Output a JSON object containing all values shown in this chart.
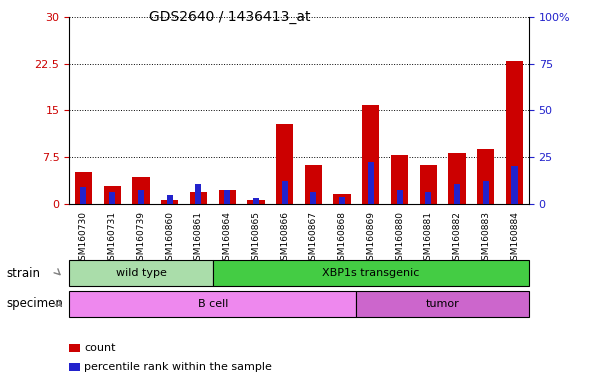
{
  "title": "GDS2640 / 1436413_at",
  "samples": [
    "GSM160730",
    "GSM160731",
    "GSM160739",
    "GSM160860",
    "GSM160861",
    "GSM160864",
    "GSM160865",
    "GSM160866",
    "GSM160867",
    "GSM160868",
    "GSM160869",
    "GSM160880",
    "GSM160881",
    "GSM160882",
    "GSM160883",
    "GSM160884"
  ],
  "count_values": [
    5.0,
    2.8,
    4.2,
    0.6,
    1.8,
    2.2,
    0.5,
    12.8,
    6.2,
    1.6,
    15.8,
    7.8,
    6.2,
    8.2,
    8.8,
    23.0
  ],
  "percentile_values": [
    9.0,
    6.0,
    7.5,
    4.5,
    10.5,
    7.5,
    3.0,
    12.0,
    6.0,
    3.6,
    22.5,
    7.5,
    6.0,
    10.5,
    12.0,
    20.0
  ],
  "ylim_left": [
    0,
    30
  ],
  "ylim_right": [
    0,
    100
  ],
  "yticks_left": [
    0,
    7.5,
    15,
    22.5,
    30
  ],
  "yticks_right": [
    0,
    25,
    50,
    75,
    100
  ],
  "ytick_labels_left": [
    "0",
    "7.5",
    "15",
    "22.5",
    "30"
  ],
  "ytick_labels_right": [
    "0",
    "25",
    "50",
    "75",
    "100%"
  ],
  "count_color": "#cc0000",
  "percentile_color": "#2222cc",
  "strain_groups": [
    {
      "label": "wild type",
      "start": 0,
      "end": 4,
      "color": "#aaddaa"
    },
    {
      "label": "XBP1s transgenic",
      "start": 5,
      "end": 15,
      "color": "#44cc44"
    }
  ],
  "specimen_groups": [
    {
      "label": "B cell",
      "start": 0,
      "end": 9,
      "color": "#ee88ee"
    },
    {
      "label": "tumor",
      "start": 10,
      "end": 15,
      "color": "#cc66cc"
    }
  ],
  "strain_label": "strain",
  "specimen_label": "specimen",
  "legend_count": "count",
  "legend_percentile": "percentile rank within the sample",
  "title_fontsize": 10,
  "left_color": "#cc0000",
  "right_color": "#2222cc"
}
